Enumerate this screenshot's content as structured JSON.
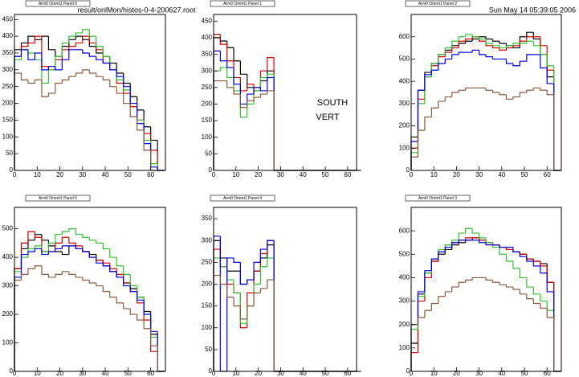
{
  "header": {
    "file": "result/onlMon/histos-0-4-200627.root",
    "date": "Sun May 14 05:39:05 2006"
  },
  "chart_data": [
    {
      "type": "histogram",
      "title": "Arm0 Orient1 Panel 0",
      "bins": [
        0,
        3,
        6,
        9,
        12,
        15,
        18,
        21,
        24,
        27,
        30,
        33,
        36,
        39,
        42,
        45,
        48,
        51,
        54,
        57,
        60,
        63,
        66
      ],
      "xlim": [
        0,
        66.5
      ],
      "xticks": [
        0,
        10,
        20,
        30,
        40,
        50,
        60
      ],
      "ylim": [
        0,
        465
      ],
      "yticks": [
        0,
        50,
        100,
        150,
        200,
        250,
        300,
        350,
        400,
        450
      ],
      "series": [
        {
          "color": "#000000",
          "values": [
            360,
            380,
            400,
            390,
            400,
            360,
            340,
            370,
            390,
            400,
            390,
            370,
            350,
            340,
            320,
            290,
            260,
            220,
            180,
            130,
            90,
            0
          ]
        },
        {
          "color": "#d00000",
          "values": [
            340,
            370,
            380,
            400,
            310,
            300,
            330,
            360,
            370,
            380,
            400,
            380,
            360,
            320,
            300,
            260,
            230,
            190,
            150,
            110,
            60,
            0
          ]
        },
        {
          "color": "#30c030",
          "values": [
            330,
            360,
            350,
            330,
            260,
            300,
            340,
            380,
            400,
            410,
            420,
            400,
            370,
            340,
            300,
            270,
            240,
            200,
            150,
            90,
            20,
            0
          ]
        },
        {
          "color": "#0000e0",
          "values": [
            340,
            360,
            330,
            350,
            300,
            310,
            300,
            330,
            360,
            360,
            350,
            340,
            330,
            320,
            300,
            280,
            250,
            200,
            140,
            80,
            10,
            0
          ]
        },
        {
          "color": "#8b5a3c",
          "values": [
            290,
            270,
            260,
            270,
            220,
            230,
            260,
            270,
            280,
            290,
            300,
            290,
            280,
            270,
            250,
            230,
            200,
            160,
            120,
            60,
            0,
            0
          ]
        }
      ]
    },
    {
      "type": "histogram",
      "title": "Arm0 Orient1 Panel 1",
      "annotations": [
        "SOUTH",
        "VERT"
      ],
      "bins": [
        0,
        3,
        6,
        9,
        12,
        15,
        18,
        21,
        24,
        27,
        30,
        33,
        36,
        39,
        42,
        45,
        48,
        51,
        54,
        57,
        60,
        63,
        66
      ],
      "xlim": [
        0,
        64
      ],
      "xticks": [
        0,
        10,
        20,
        30,
        40,
        50,
        60
      ],
      "ylim": [
        0,
        470
      ],
      "yticks": [
        0,
        50,
        100,
        150,
        200,
        250,
        300,
        350,
        400,
        450
      ],
      "series": [
        {
          "color": "#000000",
          "values": [
            400,
            390,
            370,
            330,
            290,
            250,
            240,
            270,
            300,
            0,
            0,
            0,
            0,
            0,
            0,
            0,
            0,
            0,
            0,
            0,
            0,
            0
          ]
        },
        {
          "color": "#d00000",
          "values": [
            410,
            380,
            330,
            280,
            240,
            260,
            250,
            300,
            340,
            0,
            0,
            0,
            0,
            0,
            0,
            0,
            0,
            0,
            0,
            0,
            0,
            0
          ]
        },
        {
          "color": "#30c030",
          "values": [
            300,
            310,
            280,
            240,
            160,
            200,
            240,
            280,
            290,
            0,
            0,
            0,
            0,
            0,
            0,
            0,
            0,
            0,
            0,
            0,
            0,
            0
          ]
        },
        {
          "color": "#0000e0",
          "values": [
            360,
            330,
            310,
            260,
            200,
            230,
            250,
            240,
            280,
            0,
            0,
            0,
            0,
            0,
            0,
            0,
            0,
            0,
            0,
            0,
            0,
            0
          ]
        },
        {
          "color": "#8b5a3c",
          "values": [
            270,
            270,
            250,
            230,
            190,
            210,
            220,
            230,
            240,
            0,
            0,
            0,
            0,
            0,
            0,
            0,
            0,
            0,
            0,
            0,
            0,
            0
          ]
        }
      ]
    },
    {
      "type": "histogram",
      "title": "Arm0 Orient1 Panel 2",
      "bins": [
        0,
        3,
        6,
        9,
        12,
        15,
        18,
        21,
        24,
        27,
        30,
        33,
        36,
        39,
        42,
        45,
        48,
        51,
        54,
        57,
        60,
        63,
        66
      ],
      "xlim": [
        0,
        66.3
      ],
      "xticks": [
        0,
        10,
        20,
        30,
        40,
        50,
        60
      ],
      "ylim": [
        0,
        700
      ],
      "yticks": [
        0,
        100,
        200,
        300,
        400,
        500,
        600
      ],
      "series": [
        {
          "color": "#000000",
          "values": [
            150,
            360,
            440,
            480,
            520,
            540,
            560,
            570,
            580,
            590,
            600,
            590,
            580,
            570,
            560,
            550,
            600,
            620,
            590,
            520,
            420,
            0
          ]
        },
        {
          "color": "#d00000",
          "values": [
            100,
            320,
            420,
            470,
            510,
            530,
            550,
            580,
            590,
            600,
            580,
            560,
            550,
            540,
            550,
            560,
            580,
            600,
            600,
            560,
            450,
            0
          ]
        },
        {
          "color": "#30c030",
          "values": [
            80,
            300,
            420,
            480,
            520,
            550,
            580,
            600,
            610,
            600,
            590,
            570,
            560,
            550,
            560,
            570,
            570,
            580,
            560,
            520,
            470,
            0
          ]
        },
        {
          "color": "#0000e0",
          "values": [
            130,
            360,
            430,
            450,
            480,
            500,
            520,
            530,
            530,
            540,
            520,
            510,
            500,
            500,
            480,
            470,
            490,
            520,
            520,
            460,
            390,
            0
          ]
        },
        {
          "color": "#8b5a3c",
          "values": [
            60,
            180,
            240,
            280,
            310,
            330,
            350,
            360,
            370,
            370,
            370,
            360,
            350,
            340,
            320,
            330,
            350,
            360,
            370,
            360,
            340,
            0
          ]
        }
      ]
    },
    {
      "type": "histogram",
      "title": "Arm0 Orient1 Panel 5",
      "bins": [
        0,
        3,
        6,
        9,
        12,
        15,
        18,
        21,
        24,
        27,
        30,
        33,
        36,
        39,
        42,
        45,
        48,
        51,
        54,
        57,
        60,
        63,
        66
      ],
      "xlim": [
        0,
        66.5
      ],
      "xticks": [
        0,
        10,
        20,
        30,
        40,
        50,
        60
      ],
      "ylim": [
        0,
        575
      ],
      "yticks": [
        0,
        100,
        200,
        300,
        400,
        500
      ],
      "series": [
        {
          "color": "#000000",
          "values": [
            360,
            430,
            460,
            480,
            460,
            440,
            420,
            410,
            440,
            430,
            420,
            410,
            390,
            370,
            350,
            330,
            310,
            290,
            260,
            210,
            130,
            0
          ]
        },
        {
          "color": "#d00000",
          "values": [
            360,
            450,
            490,
            470,
            420,
            420,
            450,
            470,
            450,
            440,
            420,
            400,
            390,
            380,
            360,
            340,
            310,
            280,
            240,
            180,
            70,
            0
          ]
        },
        {
          "color": "#30c030",
          "values": [
            350,
            400,
            430,
            440,
            420,
            450,
            480,
            490,
            500,
            480,
            470,
            460,
            450,
            430,
            400,
            370,
            340,
            300,
            260,
            200,
            120,
            0
          ]
        },
        {
          "color": "#0000e0",
          "values": [
            330,
            410,
            420,
            430,
            410,
            420,
            430,
            440,
            440,
            430,
            420,
            400,
            380,
            370,
            350,
            330,
            300,
            280,
            250,
            200,
            140,
            0
          ]
        },
        {
          "color": "#8b5a3c",
          "values": [
            320,
            340,
            360,
            370,
            340,
            330,
            340,
            350,
            340,
            330,
            320,
            310,
            300,
            280,
            260,
            240,
            220,
            200,
            180,
            150,
            90,
            0
          ]
        }
      ]
    },
    {
      "type": "histogram",
      "title": "Arm0 Orient1 Panel 4",
      "bins": [
        0,
        3,
        6,
        9,
        12,
        15,
        18,
        21,
        24,
        27,
        30,
        33,
        36,
        39,
        42,
        45,
        48,
        51,
        54,
        57,
        60,
        63,
        66
      ],
      "xlim": [
        0,
        64
      ],
      "xticks": [
        0,
        10,
        20,
        30,
        40,
        50,
        60
      ],
      "ylim": [
        0,
        376
      ],
      "yticks": [
        0,
        50,
        100,
        150,
        200,
        250,
        300,
        350
      ],
      "series": [
        {
          "color": "#000000",
          "values": [
            300,
            260,
            230,
            230,
            200,
            210,
            230,
            260,
            290,
            0,
            0,
            0,
            0,
            0,
            0,
            0,
            0,
            0,
            0,
            0,
            0,
            0
          ]
        },
        {
          "color": "#d00000",
          "values": [
            280,
            240,
            200,
            180,
            100,
            180,
            230,
            270,
            300,
            0,
            0,
            0,
            0,
            0,
            0,
            0,
            0,
            0,
            0,
            0,
            0,
            0
          ]
        },
        {
          "color": "#30c030",
          "values": [
            260,
            240,
            210,
            180,
            110,
            150,
            200,
            240,
            260,
            0,
            0,
            0,
            0,
            0,
            0,
            0,
            0,
            0,
            0,
            0,
            0,
            0
          ]
        },
        {
          "color": "#0000e0",
          "values": [
            310,
            0,
            260,
            250,
            200,
            210,
            250,
            280,
            300,
            0,
            0,
            0,
            0,
            0,
            0,
            0,
            0,
            0,
            0,
            0,
            0,
            0
          ]
        },
        {
          "color": "#8b5a3c",
          "values": [
            220,
            200,
            170,
            150,
            120,
            150,
            180,
            190,
            210,
            0,
            0,
            0,
            0,
            0,
            0,
            0,
            0,
            0,
            0,
            0,
            0,
            0
          ]
        }
      ]
    },
    {
      "type": "histogram",
      "title": "Arm0 Orient1 Panel 3",
      "bins": [
        0,
        3,
        6,
        9,
        12,
        15,
        18,
        21,
        24,
        27,
        30,
        33,
        36,
        39,
        42,
        45,
        48,
        51,
        54,
        57,
        60,
        63,
        66
      ],
      "xlim": [
        0,
        66.3
      ],
      "xticks": [
        0,
        10,
        20,
        30,
        40,
        50,
        60
      ],
      "ylim": [
        0,
        700
      ],
      "yticks": [
        0,
        100,
        200,
        300,
        400,
        500,
        600
      ],
      "series": [
        {
          "color": "#000000",
          "values": [
            120,
            330,
            420,
            470,
            500,
            520,
            540,
            550,
            560,
            570,
            560,
            550,
            540,
            530,
            520,
            510,
            500,
            480,
            470,
            460,
            380,
            0
          ]
        },
        {
          "color": "#d00000",
          "values": [
            80,
            300,
            400,
            470,
            510,
            540,
            550,
            560,
            570,
            570,
            560,
            550,
            540,
            530,
            520,
            510,
            500,
            480,
            470,
            450,
            380,
            0
          ]
        },
        {
          "color": "#30c030",
          "values": [
            180,
            320,
            420,
            480,
            520,
            540,
            560,
            590,
            610,
            590,
            570,
            550,
            530,
            500,
            470,
            440,
            400,
            360,
            330,
            300,
            260,
            0
          ]
        },
        {
          "color": "#0000e0",
          "values": [
            200,
            340,
            430,
            480,
            510,
            530,
            550,
            560,
            560,
            560,
            550,
            540,
            540,
            530,
            530,
            510,
            490,
            470,
            450,
            420,
            340,
            0
          ]
        },
        {
          "color": "#8b5a3c",
          "values": [
            200,
            230,
            260,
            290,
            320,
            340,
            360,
            380,
            390,
            400,
            400,
            390,
            380,
            370,
            360,
            350,
            330,
            310,
            290,
            270,
            230,
            0
          ]
        }
      ]
    }
  ]
}
